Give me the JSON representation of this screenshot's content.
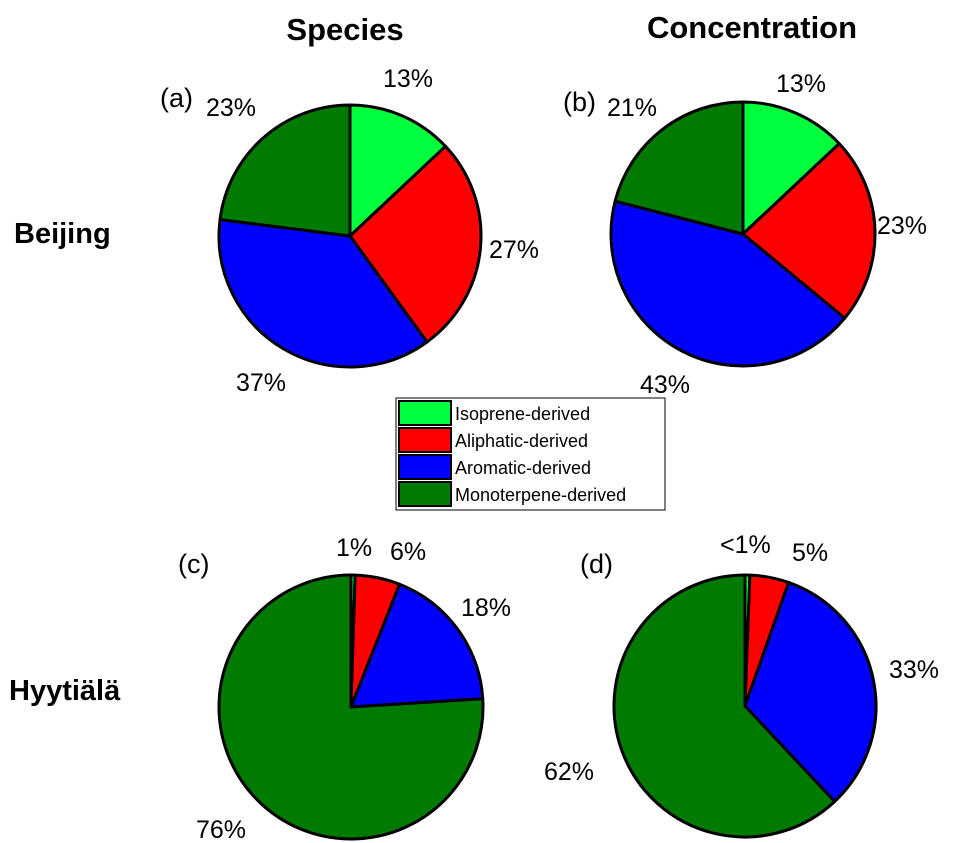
{
  "columns": {
    "species": "Species",
    "concentration": "Concentration"
  },
  "rows": {
    "beijing": "Beijing",
    "hyytiala": "Hyytiälä"
  },
  "legend": [
    {
      "label": "Isoprene-derived",
      "color": "#00ff3c"
    },
    {
      "label": "Aliphatic-derived",
      "color": "#ff0000"
    },
    {
      "label": "Aromatic-derived",
      "color": "#0000ff"
    },
    {
      "label": "Monoterpene-derived",
      "color": "#007a00"
    }
  ],
  "chart_data": [
    {
      "type": "pie",
      "panel": "(a)",
      "categories": [
        "Isoprene-derived",
        "Aliphatic-derived",
        "Aromatic-derived",
        "Monoterpene-derived"
      ],
      "values": [
        13,
        27,
        37,
        23
      ],
      "labels": [
        "13%",
        "27%",
        "37%",
        "23%"
      ]
    },
    {
      "type": "pie",
      "panel": "(b)",
      "categories": [
        "Isoprene-derived",
        "Aliphatic-derived",
        "Aromatic-derived",
        "Monoterpene-derived"
      ],
      "values": [
        13,
        23,
        43,
        21
      ],
      "labels": [
        "13%",
        "23%",
        "43%",
        "21%"
      ]
    },
    {
      "type": "pie",
      "panel": "(c)",
      "categories": [
        "Isoprene-derived",
        "Aliphatic-derived",
        "Aromatic-derived",
        "Monoterpene-derived"
      ],
      "values": [
        0.5,
        5.5,
        18,
        76
      ],
      "labels": [
        "1%",
        "6%",
        "18%",
        "76%"
      ]
    },
    {
      "type": "pie",
      "panel": "(d)",
      "categories": [
        "Isoprene-derived",
        "Aliphatic-derived",
        "Aromatic-derived",
        "Monoterpene-derived"
      ],
      "values": [
        0.6,
        4.8,
        32.6,
        62
      ],
      "labels": [
        "<1%",
        "5%",
        "33%",
        "62%"
      ]
    }
  ]
}
